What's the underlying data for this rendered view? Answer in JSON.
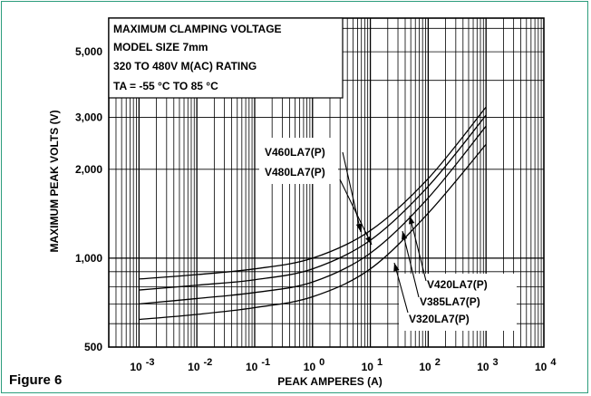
{
  "figure_label": "Figure 6",
  "colors": {
    "frame": "#2c9d7c",
    "ink": "#000000",
    "background": "#ffffff"
  },
  "chart_data": {
    "type": "line",
    "title_lines": [
      "MAXIMUM CLAMPING VOLTAGE",
      "MODEL SIZE 7mm",
      "320 TO 480V M(AC) RATING",
      "TA = -55 °C TO 85 °C"
    ],
    "xlabel": "PEAK AMPERES (A)",
    "ylabel": "MAXIMUM PEAK VOLTS (V)",
    "x_scale": "log",
    "y_scale": "log",
    "xlim": [
      0.0003,
      10000
    ],
    "ylim": [
      500,
      6500
    ],
    "x_ticks": [
      {
        "base": "10",
        "exp": "-3",
        "value": 0.001
      },
      {
        "base": "10",
        "exp": "-2",
        "value": 0.01
      },
      {
        "base": "10",
        "exp": "-1",
        "value": 0.1
      },
      {
        "base": "10",
        "exp": "0",
        "value": 1
      },
      {
        "base": "10",
        "exp": "1",
        "value": 10
      },
      {
        "base": "10",
        "exp": "2",
        "value": 100
      },
      {
        "base": "10",
        "exp": "3",
        "value": 1000
      },
      {
        "base": "10",
        "exp": "4",
        "value": 10000
      }
    ],
    "y_ticks": [
      {
        "label": "500",
        "value": 500
      },
      {
        "label": "1,000",
        "value": 1000
      },
      {
        "label": "2,000",
        "value": 2000
      },
      {
        "label": "3,000",
        "value": 3000
      },
      {
        "label": "5,000",
        "value": 5000
      }
    ],
    "grid": true,
    "series": [
      {
        "name": "V480LA7(P)",
        "x": [
          0.001,
          0.01,
          0.1,
          1,
          10,
          100,
          1000
        ],
        "y": [
          850,
          880,
          920,
          1000,
          1240,
          1860,
          3250
        ]
      },
      {
        "name": "V460LA7(P)",
        "x": [
          0.001,
          0.01,
          0.1,
          1,
          10,
          100,
          1000
        ],
        "y": [
          780,
          810,
          845,
          920,
          1150,
          1750,
          3050
        ]
      },
      {
        "name": "V420LA7(P)",
        "x": [
          0.001,
          0.01,
          0.1,
          1,
          10,
          100,
          1000
        ],
        "y": [
          700,
          730,
          765,
          830,
          1040,
          1600,
          2800
        ]
      },
      {
        "name": "V385LA7(P)",
        "x": [
          0.001,
          0.01,
          0.1,
          1,
          10,
          100,
          1000
        ],
        "y": [
          620,
          645,
          680,
          740,
          920,
          1420,
          2430
        ]
      },
      {
        "name": "V320LA7(P)",
        "x": [],
        "y": []
      }
    ],
    "annotations": [
      {
        "text": "V460LA7(P)",
        "points_to": "V480LA7(P)"
      },
      {
        "text": "V480LA7(P)",
        "points_to": "V460LA7(P)"
      },
      {
        "text": "V420LA7(P)",
        "points_to": "V480LA7(P)"
      },
      {
        "text": "V385LA7(P)",
        "points_to": "V460LA7(P)"
      },
      {
        "text": "V320LA7(P)",
        "points_to": "V385LA7(P)"
      }
    ]
  }
}
